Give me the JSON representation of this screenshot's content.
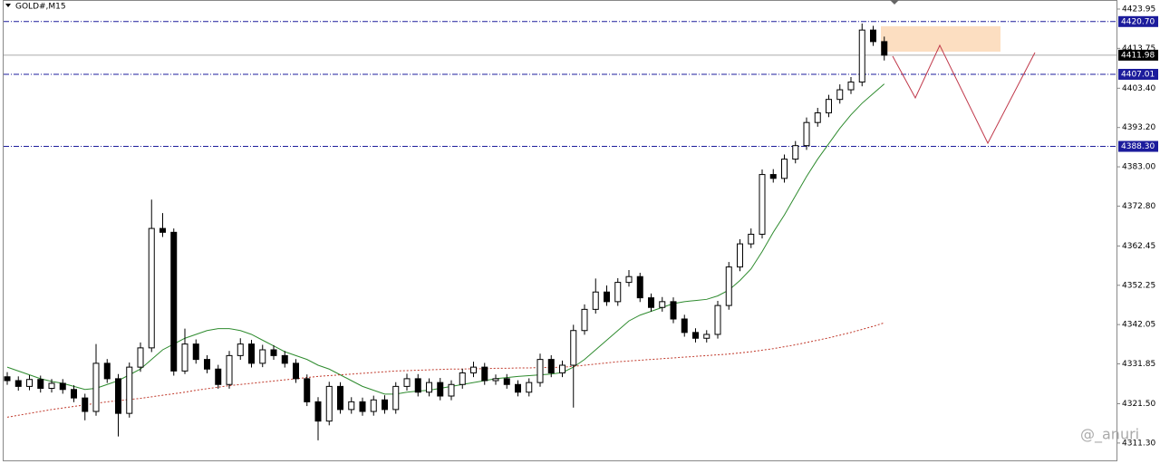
{
  "chart_data": {
    "type": "candlestick",
    "title": "GOLD#,M15",
    "watermark": "@_anuri",
    "ylim": [
      4306.8,
      4426.3
    ],
    "yticks": [
      4423.95,
      4413.75,
      {
        "value": 4403.4,
        "label": "4403.40"
      },
      {
        "value": 4393.2,
        "label": "4393.20"
      },
      {
        "value": 4383.0,
        "label": "4383.00"
      },
      {
        "value": 4372.8,
        "label": "4372.80"
      },
      4362.45,
      4352.25,
      4342.05,
      4331.85,
      {
        "value": 4321.5,
        "label": "4321.50"
      },
      {
        "value": 4311.3,
        "label": "4311.30"
      }
    ],
    "grid": false,
    "up_color": "#ffffff",
    "down_color": "#000000",
    "open": [
      4328.5,
      4327.5,
      4326.0,
      4327.8,
      4325.5,
      4326.8,
      4325.2,
      4323.0,
      4319.5,
      4332.0,
      4328.0,
      4319.0,
      4331.0,
      4336.0,
      4367.0,
      4366.0,
      4330.0,
      4337.0,
      4333.0,
      4330.5,
      4326.5,
      4334.0,
      4337.0,
      4332.0,
      4335.5,
      4334.0,
      4332.0,
      4328.0,
      4322.0,
      4317.0,
      4326.0,
      4320.0,
      4322.0,
      4319.5,
      4322.5,
      4320.0,
      4326.0,
      4328.0,
      4324.5,
      4327.0,
      4323.5,
      4326.5,
      4329.5,
      4331.0,
      4327.5,
      4328.0,
      4326.5,
      4324.5,
      4327.0,
      4333.0,
      4329.5,
      4331.5,
      4340.5,
      4346.0,
      4350.5,
      4348.0,
      4353.0,
      4354.5,
      4349.0,
      4346.5,
      4348.0,
      4343.5,
      4340.0,
      4338.5,
      4339.5,
      4347.0,
      4357.0,
      4363.0,
      4365.5,
      4381.0,
      4380.0,
      4385.0,
      4388.5,
      4394.5,
      4397.0,
      4400.5,
      4403.0,
      4405.0,
      4418.5,
      4415.5
    ],
    "high": [
      4329.7,
      4328.6,
      4328.9,
      4328.8,
      4327.9,
      4327.9,
      4326.3,
      4324.1,
      4337.0,
      4333.1,
      4329.2,
      4332.2,
      4337.4,
      4374.5,
      4371.0,
      4367.0,
      4341.0,
      4338.2,
      4334.1,
      4331.6,
      4335.2,
      4338.5,
      4338.1,
      4336.8,
      4336.7,
      4335.2,
      4333.1,
      4329.1,
      4323.2,
      4327.2,
      4327.1,
      4323.2,
      4323.1,
      4323.6,
      4323.7,
      4327.1,
      4329.3,
      4329.2,
      4328.1,
      4328.2,
      4327.6,
      4330.6,
      4332.4,
      4332.1,
      4329.1,
      4329.2,
      4327.6,
      4328.1,
      4334.5,
      4334.1,
      4332.7,
      4342.0,
      4347.3,
      4354.0,
      4352.2,
      4354.1,
      4356.2,
      4355.5,
      4350.1,
      4349.2,
      4349.1,
      4344.6,
      4341.1,
      4340.6,
      4348.2,
      4358.3,
      4364.2,
      4367.0,
      4382.3,
      4382.4,
      4386.2,
      4389.7,
      4395.8,
      4398.3,
      4401.7,
      4404.4,
      4406.3,
      4420.2,
      4419.6,
      4416.8
    ],
    "low": [
      4326.4,
      4324.9,
      4325.0,
      4324.4,
      4324.4,
      4324.1,
      4321.9,
      4317.2,
      4318.4,
      4326.9,
      4313.0,
      4317.9,
      4329.8,
      4334.9,
      4364.8,
      4328.8,
      4329.2,
      4331.9,
      4329.4,
      4325.4,
      4325.4,
      4332.9,
      4330.9,
      4331.0,
      4332.9,
      4330.9,
      4326.9,
      4320.9,
      4312.0,
      4315.9,
      4318.9,
      4318.9,
      4318.4,
      4318.4,
      4318.9,
      4318.9,
      4324.9,
      4323.4,
      4323.4,
      4322.4,
      4322.4,
      4325.4,
      4328.4,
      4326.4,
      4326.4,
      4325.4,
      4323.4,
      4323.4,
      4325.9,
      4328.4,
      4328.4,
      4320.5,
      4339.4,
      4344.9,
      4346.9,
      4346.9,
      4351.9,
      4347.9,
      4345.4,
      4345.4,
      4342.4,
      4338.9,
      4337.4,
      4337.4,
      4338.4,
      4345.9,
      4355.9,
      4361.9,
      4364.4,
      4378.9,
      4378.9,
      4383.9,
      4387.4,
      4393.4,
      4395.9,
      4399.4,
      4401.9,
      4403.9,
      4414.4,
      4410.6
    ],
    "close": [
      4327.5,
      4326.0,
      4327.8,
      4325.5,
      4326.8,
      4325.2,
      4323.0,
      4319.5,
      4332.0,
      4328.0,
      4319.0,
      4331.0,
      4336.0,
      4367.0,
      4366.0,
      4330.0,
      4337.0,
      4333.0,
      4330.5,
      4326.5,
      4334.0,
      4337.0,
      4332.0,
      4335.5,
      4334.0,
      4332.0,
      4328.0,
      4322.0,
      4317.0,
      4326.0,
      4320.0,
      4322.0,
      4319.5,
      4322.5,
      4320.0,
      4326.0,
      4328.0,
      4324.5,
      4327.0,
      4323.5,
      4326.5,
      4329.5,
      4331.0,
      4327.5,
      4328.0,
      4326.5,
      4324.5,
      4327.0,
      4333.0,
      4329.5,
      4331.5,
      4340.5,
      4346.0,
      4350.5,
      4348.0,
      4353.0,
      4354.5,
      4349.0,
      4346.5,
      4348.0,
      4343.5,
      4340.0,
      4338.5,
      4339.5,
      4347.0,
      4357.0,
      4363.0,
      4365.5,
      4381.0,
      4380.0,
      4385.0,
      4388.5,
      4394.5,
      4397.0,
      4400.5,
      4403.0,
      4405.0,
      4418.5,
      4415.5,
      4411.98
    ],
    "moving_averages": [
      {
        "color": "#2e8b2e",
        "style": "solid",
        "values": [
          4331.0,
          4330.0,
          4329.0,
          4328.0,
          4327.3,
          4326.8,
          4326.0,
          4325.2,
          4325.5,
          4326.5,
          4327.5,
          4329.0,
          4330.5,
          4333.0,
          4335.5,
          4337.0,
          4338.5,
          4339.5,
          4340.5,
          4341.0,
          4341.0,
          4340.5,
          4339.5,
          4338.0,
          4336.5,
          4335.0,
          4334.0,
          4333.0,
          4331.5,
          4330.5,
          4329.0,
          4327.5,
          4326.0,
          4325.0,
          4324.0,
          4324.0,
          4324.5,
          4324.8,
          4325.0,
          4325.5,
          4326.0,
          4326.5,
          4327.0,
          4327.5,
          4328.0,
          4328.3,
          4328.6,
          4328.8,
          4329.0,
          4329.2,
          4329.6,
          4331.0,
          4333.0,
          4335.5,
          4338.0,
          4340.5,
          4343.0,
          4344.5,
          4345.5,
          4346.5,
          4347.5,
          4348.0,
          4348.3,
          4348.6,
          4349.5,
          4351.0,
          4353.5,
          4356.5,
          4361.0,
          4366.0,
          4370.5,
          4375.5,
          4380.5,
          4385.0,
          4389.0,
          4393.0,
          4396.5,
          4399.5,
          4402.0,
          4404.5
        ]
      },
      {
        "color": "#c0392b",
        "style": "dotted",
        "values": [
          4318.0,
          4318.5,
          4319.0,
          4319.5,
          4320.0,
          4320.4,
          4320.8,
          4321.2,
          4321.6,
          4322.0,
          4322.3,
          4322.6,
          4322.9,
          4323.3,
          4323.7,
          4324.1,
          4324.5,
          4325.0,
          4325.4,
          4325.8,
          4326.2,
          4326.5,
          4326.8,
          4327.1,
          4327.4,
          4327.7,
          4328.0,
          4328.3,
          4328.6,
          4328.8,
          4329.0,
          4329.2,
          4329.4,
          4329.6,
          4329.8,
          4330.0,
          4330.1,
          4330.2,
          4330.3,
          4330.4,
          4330.5,
          4330.5,
          4330.6,
          4330.6,
          4330.7,
          4330.7,
          4330.8,
          4330.8,
          4330.9,
          4330.9,
          4331.0,
          4331.2,
          4331.5,
          4331.8,
          4332.1,
          4332.4,
          4332.6,
          4332.8,
          4333.0,
          4333.2,
          4333.4,
          4333.6,
          4333.8,
          4334.0,
          4334.2,
          4334.4,
          4334.7,
          4335.0,
          4335.4,
          4335.8,
          4336.3,
          4336.8,
          4337.4,
          4338.0,
          4338.6,
          4339.3,
          4340.0,
          4340.8,
          4341.6,
          4342.5
        ]
      }
    ],
    "levels": [
      {
        "value": 4420.7,
        "label": "4420.70"
      },
      4407.01,
      {
        "value": 4388.3,
        "label": "4388.30"
      }
    ],
    "level_color": "#1c1c9c",
    "current_price": 4411.98
  }
}
